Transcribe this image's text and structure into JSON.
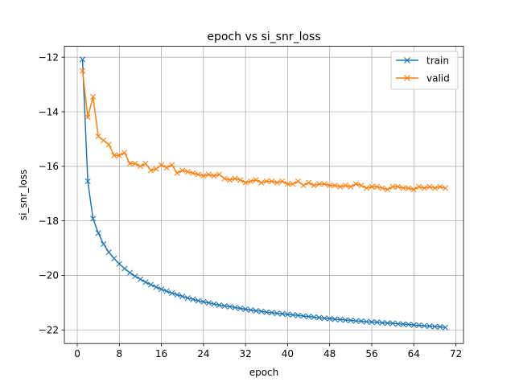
{
  "chart_data": {
    "type": "line",
    "title": "epoch vs si_snr_loss",
    "xlabel": "epoch",
    "ylabel": "si_snr_loss",
    "xlim": [
      -2.45,
      73.45
    ],
    "ylim": [
      -22.5,
      -11.6
    ],
    "xticks": [
      0,
      8,
      16,
      24,
      32,
      40,
      48,
      56,
      64,
      72
    ],
    "yticks": [
      -22,
      -20,
      -18,
      -16,
      -14,
      -12
    ],
    "xtick_labels": [
      "0",
      "8",
      "16",
      "24",
      "32",
      "40",
      "48",
      "56",
      "64",
      "72"
    ],
    "ytick_labels": [
      "−22",
      "−20",
      "−18",
      "−16",
      "−14",
      "−12"
    ],
    "grid": true,
    "legend_position": "top-right",
    "x": [
      1,
      2,
      3,
      4,
      5,
      6,
      7,
      8,
      9,
      10,
      11,
      12,
      13,
      14,
      15,
      16,
      17,
      18,
      19,
      20,
      21,
      22,
      23,
      24,
      25,
      26,
      27,
      28,
      29,
      30,
      31,
      32,
      33,
      34,
      35,
      36,
      37,
      38,
      39,
      40,
      41,
      42,
      43,
      44,
      45,
      46,
      47,
      48,
      49,
      50,
      51,
      52,
      53,
      54,
      55,
      56,
      57,
      58,
      59,
      60,
      61,
      62,
      63,
      64,
      65,
      66,
      67,
      68,
      69,
      70
    ],
    "series": [
      {
        "name": "train",
        "color": "#1f77b4",
        "marker": "x",
        "values": [
          -12.08,
          -16.55,
          -17.92,
          -18.45,
          -18.85,
          -19.15,
          -19.38,
          -19.58,
          -19.75,
          -19.9,
          -20.03,
          -20.14,
          -20.25,
          -20.34,
          -20.43,
          -20.51,
          -20.58,
          -20.65,
          -20.71,
          -20.77,
          -20.83,
          -20.88,
          -20.93,
          -20.97,
          -21.01,
          -21.05,
          -21.09,
          -21.12,
          -21.15,
          -21.18,
          -21.21,
          -21.24,
          -21.27,
          -21.3,
          -21.32,
          -21.35,
          -21.37,
          -21.39,
          -21.41,
          -21.43,
          -21.45,
          -21.47,
          -21.49,
          -21.51,
          -21.53,
          -21.55,
          -21.57,
          -21.59,
          -21.61,
          -21.62,
          -21.64,
          -21.65,
          -21.67,
          -21.68,
          -21.7,
          -21.71,
          -21.72,
          -21.74,
          -21.75,
          -21.76,
          -21.78,
          -21.79,
          -21.8,
          -21.82,
          -21.83,
          -21.85,
          -21.86,
          -21.88,
          -21.89,
          -21.91
        ]
      },
      {
        "name": "valid",
        "color": "#ff7f0e",
        "marker": "x",
        "values": [
          -12.5,
          -14.2,
          -13.45,
          -14.9,
          -15.05,
          -15.2,
          -15.6,
          -15.6,
          -15.5,
          -15.9,
          -15.9,
          -16.0,
          -15.9,
          -16.15,
          -16.1,
          -15.95,
          -16.05,
          -15.95,
          -16.25,
          -16.15,
          -16.2,
          -16.25,
          -16.3,
          -16.35,
          -16.3,
          -16.35,
          -16.3,
          -16.45,
          -16.5,
          -16.45,
          -16.5,
          -16.6,
          -16.55,
          -16.5,
          -16.6,
          -16.55,
          -16.55,
          -16.6,
          -16.55,
          -16.65,
          -16.65,
          -16.55,
          -16.7,
          -16.6,
          -16.7,
          -16.65,
          -16.65,
          -16.7,
          -16.7,
          -16.75,
          -16.7,
          -16.75,
          -16.65,
          -16.7,
          -16.8,
          -16.75,
          -16.75,
          -16.8,
          -16.85,
          -16.75,
          -16.75,
          -16.8,
          -16.8,
          -16.85,
          -16.75,
          -16.8,
          -16.75,
          -16.8,
          -16.75,
          -16.8
        ]
      }
    ]
  }
}
